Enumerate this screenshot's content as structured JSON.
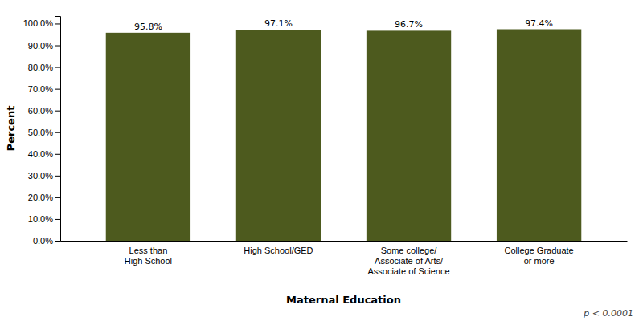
{
  "chart_data": {
    "type": "bar",
    "categories": [
      "Less than\nHigh School",
      "High School/GED",
      "Some college/\nAssociate of Arts/\nAssociate of Science",
      "College Graduate\nor more"
    ],
    "values": [
      95.8,
      97.1,
      96.7,
      97.4
    ],
    "value_labels": [
      "95.8%",
      "97.1%",
      "96.7%",
      "97.4%"
    ],
    "data_labels": true,
    "color": "#4d5a1e",
    "xlabel": "Maternal Education",
    "ylabel": "Percent",
    "ylim": [
      0,
      103.5
    ],
    "yticks": [
      {
        "value": 0,
        "label": "0.0%"
      },
      {
        "value": 10,
        "label": "10.0%"
      },
      {
        "value": 20,
        "label": "20.0%"
      },
      {
        "value": 30,
        "label": "30.0%"
      },
      {
        "value": 40,
        "label": "40.0%"
      },
      {
        "value": 50,
        "label": "50.0%"
      },
      {
        "value": 60,
        "label": "60.0%"
      },
      {
        "value": 70,
        "label": "70.0%"
      },
      {
        "value": 80,
        "label": "80.0%"
      },
      {
        "value": 90,
        "label": "90.0%"
      },
      {
        "value": 100,
        "label": "100.0%"
      }
    ],
    "annotation": "p < 0.0001",
    "grid": false
  }
}
